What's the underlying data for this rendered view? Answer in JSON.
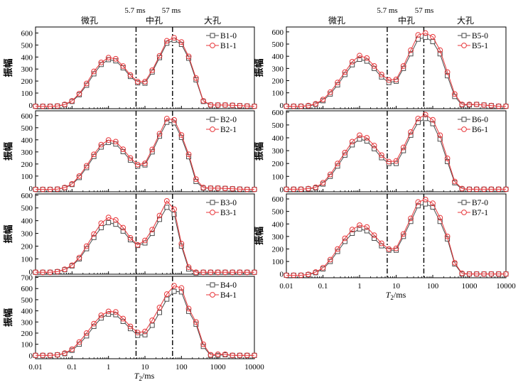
{
  "figure": {
    "boundaries": [
      {
        "value": 5.7,
        "label": "5.7 ms"
      },
      {
        "value": 57,
        "label": "57 ms"
      }
    ],
    "regions": [
      "微孔",
      "中孔",
      "大孔"
    ],
    "ylabel": "振幅",
    "xlabel_main": "T",
    "xlabel_sub": "2",
    "xlabel_unit": "/ms",
    "colors": {
      "s0": "#4a4a4a",
      "s1": "#e8363a"
    }
  },
  "chart_data": [
    {
      "type": "line",
      "panel": "B1",
      "x": [
        0.01,
        0.0158,
        0.0251,
        0.0398,
        0.0631,
        0.1,
        0.158,
        0.251,
        0.398,
        0.631,
        1,
        1.58,
        2.51,
        3.98,
        6.31,
        10,
        15.8,
        25.1,
        39.8,
        63.1,
        100,
        158,
        251,
        398,
        631,
        1000,
        1580,
        2510,
        3980,
        6310,
        10000
      ],
      "yticks": [
        0,
        100,
        200,
        300,
        400,
        500,
        600
      ],
      "ylim": [
        -30,
        650
      ],
      "series": [
        {
          "name": "B1-0",
          "values": [
            -10,
            -10,
            -10,
            -8,
            3,
            30,
            86,
            165,
            260,
            338,
            378,
            368,
            310,
            238,
            185,
            182,
            275,
            395,
            515,
            540,
            505,
            390,
            210,
            30,
            0,
            0,
            0,
            -2,
            -5,
            -8,
            -10
          ]
        },
        {
          "name": "B1-1",
          "values": [
            -10,
            -10,
            -10,
            -8,
            5,
            35,
            95,
            180,
            280,
            355,
            395,
            385,
            325,
            250,
            195,
            195,
            290,
            410,
            535,
            560,
            525,
            405,
            225,
            35,
            2,
            0,
            0,
            -2,
            -5,
            -8,
            -10
          ]
        }
      ]
    },
    {
      "type": "line",
      "panel": "B2",
      "x": [
        0.01,
        0.0158,
        0.0251,
        0.0398,
        0.0631,
        0.1,
        0.158,
        0.251,
        0.398,
        0.631,
        1,
        1.58,
        2.51,
        3.98,
        6.31,
        10,
        15.8,
        25.1,
        39.8,
        63.1,
        100,
        158,
        251,
        398,
        631,
        1000,
        1580,
        2510,
        3980,
        6310,
        10000
      ],
      "yticks": [
        0,
        100,
        200,
        300,
        400,
        500,
        600
      ],
      "ylim": [
        -30,
        640
      ],
      "series": [
        {
          "name": "B2-0",
          "values": [
            -10,
            -10,
            -10,
            -8,
            3,
            30,
            88,
            170,
            262,
            340,
            378,
            365,
            302,
            232,
            182,
            192,
            300,
            430,
            545,
            540,
            420,
            260,
            55,
            0,
            0,
            0,
            -2,
            -5,
            -8,
            -10,
            -10
          ]
        },
        {
          "name": "B2-1",
          "values": [
            -10,
            -10,
            -10,
            -8,
            5,
            35,
            100,
            185,
            280,
            360,
            398,
            385,
            322,
            250,
            195,
            205,
            320,
            450,
            575,
            565,
            440,
            280,
            75,
            5,
            0,
            0,
            -2,
            -5,
            -8,
            -10,
            -10
          ]
        }
      ]
    },
    {
      "type": "line",
      "panel": "B3",
      "x": [
        0.01,
        0.0158,
        0.0251,
        0.0398,
        0.0631,
        0.1,
        0.158,
        0.251,
        0.398,
        0.631,
        1,
        1.58,
        2.51,
        3.98,
        6.31,
        10,
        15.8,
        25.1,
        39.8,
        63.1,
        100,
        158,
        251,
        398,
        631,
        1000,
        1580,
        2510,
        3980,
        6310,
        10000
      ],
      "yticks": [
        0,
        100,
        200,
        300,
        400,
        500,
        600
      ],
      "ylim": [
        -20,
        610
      ],
      "series": [
        {
          "name": "B3-0",
          "values": [
            -5,
            -5,
            -5,
            0,
            15,
            45,
            100,
            180,
            268,
            345,
            385,
            372,
            318,
            250,
            205,
            225,
            300,
            410,
            505,
            450,
            200,
            20,
            -10,
            -5,
            -5,
            -5,
            -5,
            -5,
            -5,
            -5,
            -5
          ]
        },
        {
          "name": "B3-1",
          "values": [
            -5,
            -5,
            -5,
            0,
            18,
            50,
            110,
            200,
            295,
            380,
            425,
            405,
            345,
            265,
            210,
            245,
            330,
            440,
            555,
            490,
            220,
            35,
            -5,
            -5,
            -5,
            -5,
            -5,
            -5,
            -5,
            -5,
            -5
          ]
        }
      ]
    },
    {
      "type": "line",
      "panel": "B4",
      "x": [
        0.01,
        0.0158,
        0.0251,
        0.0398,
        0.0631,
        0.1,
        0.158,
        0.251,
        0.398,
        0.631,
        1,
        1.58,
        2.51,
        3.98,
        6.31,
        10,
        15.8,
        25.1,
        39.8,
        63.1,
        100,
        158,
        251,
        398,
        631,
        1000,
        1580,
        2510,
        3980,
        6310,
        10000
      ],
      "yticks": [
        0,
        100,
        200,
        300,
        400,
        500,
        600,
        700
      ],
      "ylim": [
        -30,
        710
      ],
      "series": [
        {
          "name": "B4-0",
          "values": [
            0,
            0,
            0,
            5,
            15,
            45,
            100,
            175,
            260,
            335,
            370,
            365,
            305,
            240,
            180,
            185,
            270,
            385,
            505,
            575,
            570,
            395,
            280,
            80,
            0,
            0,
            5,
            0,
            0,
            0,
            0
          ]
        },
        {
          "name": "B4-1",
          "values": [
            0,
            0,
            0,
            5,
            20,
            55,
            120,
            200,
            285,
            360,
            395,
            390,
            330,
            260,
            205,
            215,
            315,
            430,
            550,
            625,
            605,
            420,
            300,
            100,
            5,
            10,
            10,
            0,
            0,
            0,
            0
          ]
        }
      ]
    },
    {
      "type": "line",
      "panel": "B5",
      "x": [
        0.01,
        0.0158,
        0.0251,
        0.0398,
        0.0631,
        0.1,
        0.158,
        0.251,
        0.398,
        0.631,
        1,
        1.58,
        2.51,
        3.98,
        6.31,
        10,
        15.8,
        25.1,
        39.8,
        63.1,
        100,
        158,
        251,
        398,
        631,
        1000,
        1580,
        2510,
        3980,
        6310,
        10000
      ],
      "yticks": [
        0,
        100,
        200,
        300,
        400,
        500,
        600
      ],
      "ylim": [
        -30,
        640
      ],
      "series": [
        {
          "name": "B5-0",
          "values": [
            -10,
            -10,
            -10,
            -8,
            5,
            35,
            90,
            165,
            250,
            330,
            375,
            360,
            300,
            230,
            185,
            195,
            300,
            420,
            540,
            555,
            520,
            420,
            240,
            70,
            0,
            0,
            5,
            0,
            -5,
            -10,
            -10
          ]
        },
        {
          "name": "B5-1",
          "values": [
            -10,
            -10,
            -10,
            -5,
            10,
            45,
            105,
            185,
            270,
            355,
            405,
            385,
            320,
            250,
            205,
            210,
            320,
            450,
            575,
            590,
            560,
            450,
            270,
            90,
            5,
            5,
            5,
            0,
            -5,
            -10,
            -10
          ]
        }
      ]
    },
    {
      "type": "line",
      "panel": "B6",
      "x": [
        0.01,
        0.0158,
        0.0251,
        0.0398,
        0.0631,
        0.1,
        0.158,
        0.251,
        0.398,
        0.631,
        1,
        1.58,
        2.51,
        3.98,
        6.31,
        10,
        15.8,
        25.1,
        39.8,
        63.1,
        100,
        158,
        251,
        398,
        631,
        1000,
        1580,
        2510,
        3980,
        6310,
        10000
      ],
      "yticks": [
        0,
        100,
        200,
        300,
        400,
        500,
        600
      ],
      "ylim": [
        -20,
        610
      ],
      "series": [
        {
          "name": "B6-0",
          "values": [
            0,
            0,
            0,
            3,
            10,
            40,
            100,
            180,
            265,
            345,
            390,
            375,
            315,
            245,
            200,
            200,
            300,
            420,
            520,
            550,
            510,
            390,
            215,
            50,
            0,
            0,
            0,
            0,
            0,
            0,
            0
          ]
        },
        {
          "name": "B6-1",
          "values": [
            0,
            0,
            0,
            5,
            15,
            50,
            115,
            200,
            285,
            370,
            420,
            400,
            340,
            265,
            215,
            220,
            325,
            445,
            550,
            580,
            540,
            420,
            240,
            60,
            5,
            0,
            0,
            0,
            0,
            0,
            0
          ]
        }
      ]
    },
    {
      "type": "line",
      "panel": "B7",
      "x": [
        0.01,
        0.0158,
        0.0251,
        0.0398,
        0.0631,
        0.1,
        0.158,
        0.251,
        0.398,
        0.631,
        1,
        1.58,
        2.51,
        3.98,
        6.31,
        10,
        15.8,
        25.1,
        39.8,
        63.1,
        100,
        158,
        251,
        398,
        631,
        1000,
        1580,
        2510,
        3980,
        6310,
        10000
      ],
      "yticks": [
        0,
        100,
        200,
        300,
        400,
        500,
        600
      ],
      "ylim": [
        -30,
        640
      ],
      "series": [
        {
          "name": "B7-0",
          "values": [
            -10,
            -10,
            -10,
            -5,
            10,
            40,
            100,
            180,
            260,
            325,
            360,
            345,
            285,
            225,
            190,
            190,
            300,
            420,
            545,
            560,
            535,
            420,
            280,
            80,
            0,
            0,
            0,
            0,
            0,
            0,
            0
          ]
        },
        {
          "name": "B7-1",
          "values": [
            -10,
            -10,
            -10,
            -3,
            15,
            50,
            115,
            200,
            285,
            355,
            390,
            375,
            310,
            245,
            200,
            205,
            320,
            445,
            575,
            595,
            565,
            450,
            300,
            90,
            5,
            0,
            0,
            0,
            0,
            0,
            0
          ]
        }
      ]
    }
  ]
}
